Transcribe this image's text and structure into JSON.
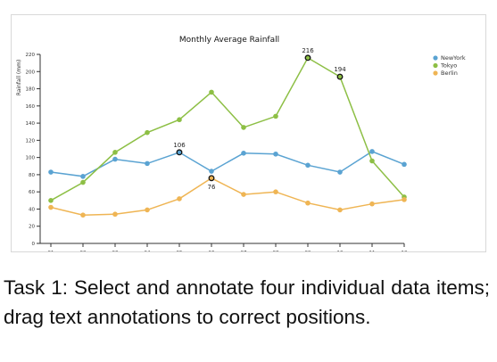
{
  "chart_data": {
    "type": "line",
    "title": "Monthly Average Rainfall",
    "ylabel": "Rainfall (mm)",
    "xlabel": "",
    "categories": [
      "01",
      "02",
      "03",
      "04",
      "05",
      "06",
      "07",
      "08",
      "09",
      "10",
      "11",
      "12"
    ],
    "ylim": [
      0,
      220
    ],
    "yticks": [
      0,
      20,
      40,
      60,
      80,
      100,
      120,
      140,
      160,
      180,
      200,
      220
    ],
    "grid": false,
    "legend_position": "top-right",
    "series": [
      {
        "name": "NewYork",
        "color": "#5aa3d2",
        "values": [
          83,
          78,
          98,
          93,
          106,
          84,
          105,
          104,
          91,
          83,
          107,
          92
        ]
      },
      {
        "name": "Tokyo",
        "color": "#8dbf45",
        "values": [
          50,
          71,
          106,
          129,
          144,
          176,
          135,
          148,
          216,
          194,
          96,
          54
        ]
      },
      {
        "name": "Berlin",
        "color": "#efb554",
        "values": [
          42,
          33,
          34,
          39,
          52,
          76,
          57,
          60,
          47,
          39,
          46,
          51
        ]
      }
    ],
    "annotations": [
      {
        "series": "NewYork",
        "category": "05",
        "label": "106",
        "position": "above"
      },
      {
        "series": "Berlin",
        "category": "06",
        "label": "76",
        "position": "below"
      },
      {
        "series": "Tokyo",
        "category": "09",
        "label": "216",
        "position": "above"
      },
      {
        "series": "Tokyo",
        "category": "10",
        "label": "194",
        "position": "above"
      }
    ]
  },
  "caption": "Task 1: Select and annotate four individual data items; drag text annotations to correct positions."
}
